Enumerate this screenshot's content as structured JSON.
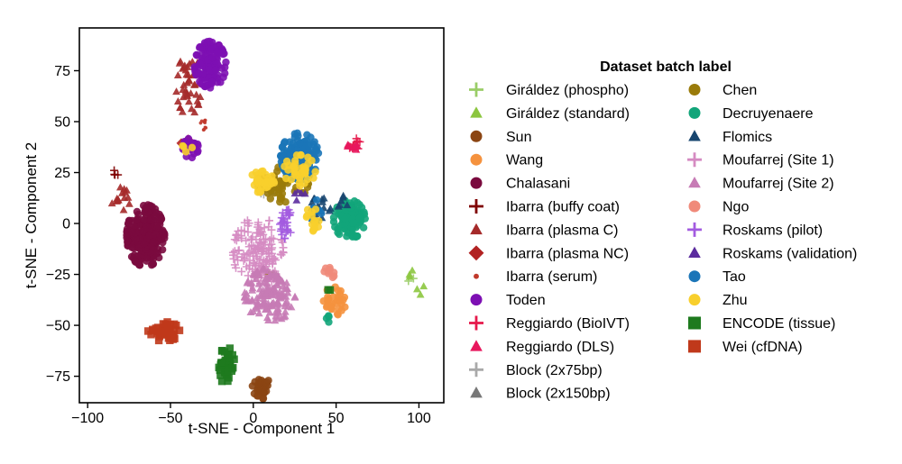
{
  "chart_data": {
    "type": "scatter",
    "xlabel": "t-SNE - Component 1",
    "ylabel": "t-SNE - Component 2",
    "xlim": [
      -105,
      115
    ],
    "ylim": [
      -88,
      96
    ],
    "xticks": [
      -100,
      -50,
      0,
      50,
      100
    ],
    "yticks": [
      -75,
      -50,
      -25,
      0,
      25,
      50,
      75
    ],
    "xtick_labels": [
      "−100",
      "−50",
      "0",
      "50",
      "100"
    ],
    "ytick_labels": [
      "−75",
      "−50",
      "−25",
      "0",
      "25",
      "50",
      "75"
    ],
    "grid": false,
    "legend": {
      "title": "Dataset batch label",
      "placement": "outside-right",
      "columns": 2
    },
    "series": [
      {
        "name": "Giráldez (phospho)",
        "marker": "plus",
        "color": "#9ACD67",
        "clusters": [
          [
            93,
            -26,
            2,
            2,
            2
          ]
        ]
      },
      {
        "name": "Giráldez (standard)",
        "marker": "triangle",
        "color": "#8CC63F",
        "clusters": [
          [
            94,
            -25,
            1.5,
            1.5,
            3
          ],
          [
            101,
            -33,
            1.5,
            1.5,
            3
          ]
        ]
      },
      {
        "name": "Sun",
        "marker": "circle",
        "color": "#8B4513",
        "clusters": [
          [
            5,
            -81,
            3,
            3,
            35
          ]
        ]
      },
      {
        "name": "Wang",
        "marker": "circle",
        "color": "#F5923E",
        "clusters": [
          [
            50,
            -38,
            4,
            4,
            30
          ]
        ]
      },
      {
        "name": "Chalasani",
        "marker": "circle",
        "color": "#7A0A3E",
        "clusters": [
          [
            -65,
            -6,
            6,
            8,
            250
          ]
        ]
      },
      {
        "name": "Ibarra (buffy coat)",
        "marker": "plus",
        "color": "#7F0000",
        "clusters": [
          [
            -83,
            24,
            1.2,
            1.2,
            4
          ]
        ]
      },
      {
        "name": "Ibarra (plasma C)",
        "marker": "triangle",
        "color": "#A52A2A",
        "clusters": [
          [
            -39,
            68,
            4,
            8,
            45
          ],
          [
            -80,
            12,
            3,
            3,
            15
          ]
        ]
      },
      {
        "name": "Ibarra (plasma NC)",
        "marker": "diamond",
        "color": "#B22222",
        "clusters": [
          [
            -40,
            40,
            2,
            2,
            5
          ]
        ]
      },
      {
        "name": "Ibarra (serum)",
        "marker": "dot",
        "color": "#C0392B",
        "clusters": [
          [
            -30,
            48,
            1.5,
            2,
            10
          ]
        ]
      },
      {
        "name": "Toden",
        "marker": "circle",
        "color": "#7D0FB3",
        "clusters": [
          [
            -26,
            78,
            5,
            6,
            130
          ],
          [
            -38,
            37,
            2.5,
            2.5,
            25
          ]
        ]
      },
      {
        "name": "Reggiardo (BioIVT)",
        "marker": "plus",
        "color": "#E6194B",
        "clusters": [
          [
            61,
            39,
            2,
            1.5,
            12
          ]
        ]
      },
      {
        "name": "Reggiardo (DLS)",
        "marker": "triangle",
        "color": "#E8175D",
        "clusters": [
          [
            60,
            38,
            2,
            1.5,
            10
          ]
        ]
      },
      {
        "name": "Block (2x75bp)",
        "marker": "plus",
        "color": "#A9A9A9",
        "clusters": [
          [
            6,
            18,
            2,
            2,
            10
          ]
        ]
      },
      {
        "name": "Block (2x150bp)",
        "marker": "triangle",
        "color": "#777777",
        "clusters": [
          [
            8,
            17,
            2,
            2,
            8
          ]
        ]
      },
      {
        "name": "Chen",
        "marker": "circle",
        "color": "#9A7B0A",
        "clusters": [
          [
            18,
            20,
            8,
            5,
            50
          ],
          [
            12,
            -28,
            2,
            2,
            3
          ]
        ]
      },
      {
        "name": "Decruyenaere",
        "marker": "circle",
        "color": "#12A57A",
        "clusters": [
          [
            58,
            2,
            5,
            5,
            110
          ],
          [
            47,
            -46,
            1.5,
            1.5,
            4
          ]
        ]
      },
      {
        "name": "Flomics",
        "marker": "triangle",
        "color": "#17456F",
        "clusters": [
          [
            40,
            7,
            4,
            3,
            20
          ],
          [
            53,
            10,
            2,
            2,
            6
          ]
        ]
      },
      {
        "name": "Moufarrej (Site 1)",
        "marker": "plus",
        "color": "#D58BC2",
        "clusters": [
          [
            3,
            -14,
            8,
            9,
            160
          ]
        ]
      },
      {
        "name": "Moufarrej (Site 2)",
        "marker": "triangle",
        "color": "#C77BB5",
        "clusters": [
          [
            10,
            -35,
            8,
            7,
            140
          ]
        ]
      },
      {
        "name": "Ngo",
        "marker": "circle",
        "color": "#F08A7A",
        "clusters": [
          [
            46,
            -25,
            2,
            2,
            10
          ]
        ]
      },
      {
        "name": "Roskams (pilot)",
        "marker": "plus",
        "color": "#A35BE0",
        "clusters": [
          [
            20,
            0,
            2,
            4,
            30
          ]
        ]
      },
      {
        "name": "Roskams (validation)",
        "marker": "triangle",
        "color": "#5B2C9E",
        "clusters": [
          [
            28,
            14,
            2,
            2,
            5
          ]
        ]
      },
      {
        "name": "Tao",
        "marker": "circle",
        "color": "#1B75B8",
        "clusters": [
          [
            28,
            33,
            6,
            6,
            170
          ],
          [
            38,
            7,
            3,
            3,
            10
          ]
        ]
      },
      {
        "name": "Zhu",
        "marker": "circle",
        "color": "#F8CF2C",
        "clusters": [
          [
            5,
            20,
            4,
            3,
            30
          ],
          [
            28,
            26,
            5,
            4,
            40
          ],
          [
            36,
            2,
            3,
            3,
            15
          ],
          [
            -40,
            38,
            2,
            1.5,
            4
          ]
        ]
      },
      {
        "name": "ENCODE (tissue)",
        "marker": "square",
        "color": "#1E7A1E",
        "clusters": [
          [
            -16,
            -70,
            2.5,
            5,
            45
          ],
          [
            46,
            -32,
            1,
            1,
            2
          ]
        ]
      },
      {
        "name": "Wei (cfDNA)",
        "marker": "square",
        "color": "#C0391B",
        "clusters": [
          [
            -54,
            -53,
            5,
            2.5,
            45
          ]
        ]
      }
    ]
  }
}
